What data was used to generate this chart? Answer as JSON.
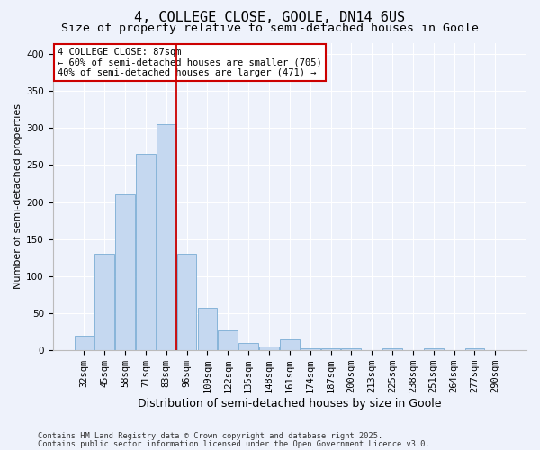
{
  "title": "4, COLLEGE CLOSE, GOOLE, DN14 6US",
  "subtitle": "Size of property relative to semi-detached houses in Goole",
  "xlabel": "Distribution of semi-detached houses by size in Goole",
  "ylabel": "Number of semi-detached properties",
  "categories": [
    "32sqm",
    "45sqm",
    "58sqm",
    "71sqm",
    "83sqm",
    "96sqm",
    "109sqm",
    "122sqm",
    "135sqm",
    "148sqm",
    "161sqm",
    "174sqm",
    "187sqm",
    "200sqm",
    "213sqm",
    "225sqm",
    "238sqm",
    "251sqm",
    "264sqm",
    "277sqm",
    "290sqm"
  ],
  "values": [
    20,
    130,
    210,
    265,
    305,
    130,
    57,
    27,
    10,
    5,
    15,
    3,
    3,
    3,
    0,
    3,
    0,
    3,
    0,
    3,
    0
  ],
  "bar_color": "#c5d8f0",
  "bar_edge_color": "#7aadd4",
  "vline_x": 4.5,
  "vline_color": "#cc0000",
  "annotation_title": "4 COLLEGE CLOSE: 87sqm",
  "annotation_line1": "← 60% of semi-detached houses are smaller (705)",
  "annotation_line2": "40% of semi-detached houses are larger (471) →",
  "annotation_box_color": "#cc0000",
  "footnote1": "Contains HM Land Registry data © Crown copyright and database right 2025.",
  "footnote2": "Contains public sector information licensed under the Open Government Licence v3.0.",
  "ylim": [
    0,
    415
  ],
  "yticks": [
    0,
    50,
    100,
    150,
    200,
    250,
    300,
    350,
    400
  ],
  "bg_color": "#eef2fb",
  "plot_bg_color": "#eef2fb",
  "title_fontsize": 11,
  "subtitle_fontsize": 9.5,
  "xlabel_fontsize": 9,
  "ylabel_fontsize": 8,
  "tick_fontsize": 7.5,
  "footnote_fontsize": 6.2,
  "annotation_fontsize": 7.5
}
